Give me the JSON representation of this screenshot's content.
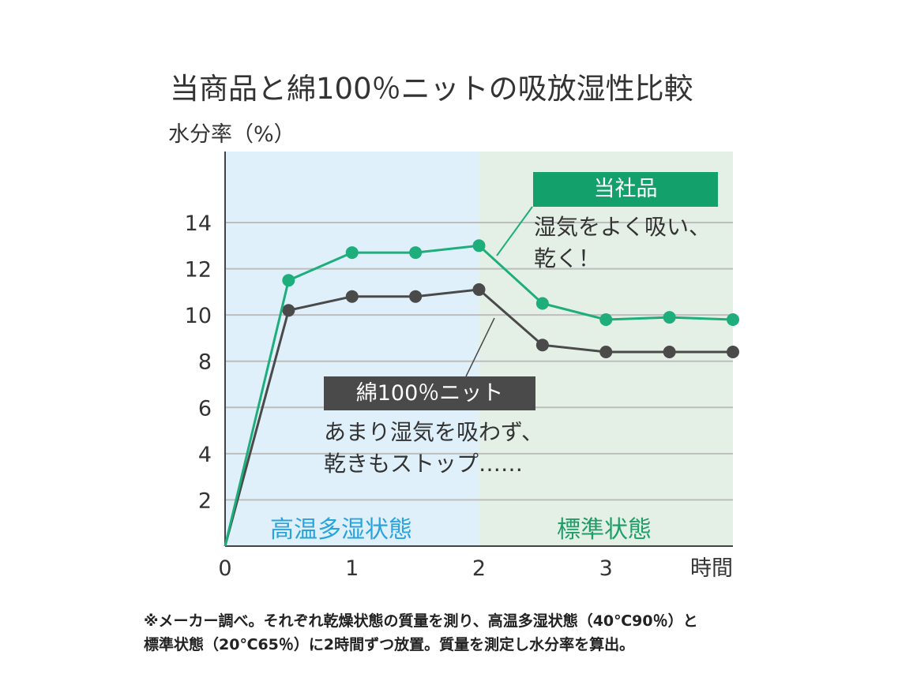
{
  "chart_data": {
    "type": "line",
    "title": "当商品と綿100％ニットの吸放湿性比較",
    "ylabel": "水分率（%）",
    "xlabel": "時間",
    "xlim": [
      0,
      4
    ],
    "ylim": [
      0,
      16
    ],
    "x_ticks": [
      "0",
      "1",
      "2",
      "3"
    ],
    "y_ticks": [
      "2",
      "4",
      "6",
      "8",
      "10",
      "12",
      "14"
    ],
    "grid": true,
    "x": [
      0,
      0.5,
      1,
      1.5,
      2,
      2.5,
      3,
      3.5,
      4
    ],
    "series": [
      {
        "name": "当社品",
        "color": "#1dae7c",
        "values": [
          0,
          11.5,
          12.7,
          12.7,
          13.0,
          10.5,
          9.8,
          9.9,
          9.8
        ]
      },
      {
        "name": "綿100％ニット",
        "color": "#4a4a4a",
        "values": [
          0,
          10.2,
          10.8,
          10.8,
          11.1,
          8.7,
          8.4,
          8.4,
          8.4
        ]
      }
    ],
    "regions": [
      {
        "label": "高温多湿状態",
        "from": 0,
        "to": 2,
        "color": "#dff0fa",
        "text_color": "#2aa3dc"
      },
      {
        "label": "標準状態",
        "from": 2,
        "to": 4,
        "color": "#e4f0e6",
        "text_color": "#1f9e6a"
      }
    ],
    "annotations": [
      {
        "label": "当社品",
        "text": [
          "湿気をよく吸い、",
          "乾く！"
        ]
      },
      {
        "label": "綿100％ニット",
        "text": [
          "あまり湿気を吸わず、",
          "乾きもストップ……"
        ]
      }
    ],
    "footnote": [
      "※メーカー調べ。それぞれ乾燥状態の質量を測り、高温多湿状態（40℃90％）と",
      "標準状態（20℃65％）に2時間ずつ放置。質量を測定し水分率を算出。"
    ]
  }
}
